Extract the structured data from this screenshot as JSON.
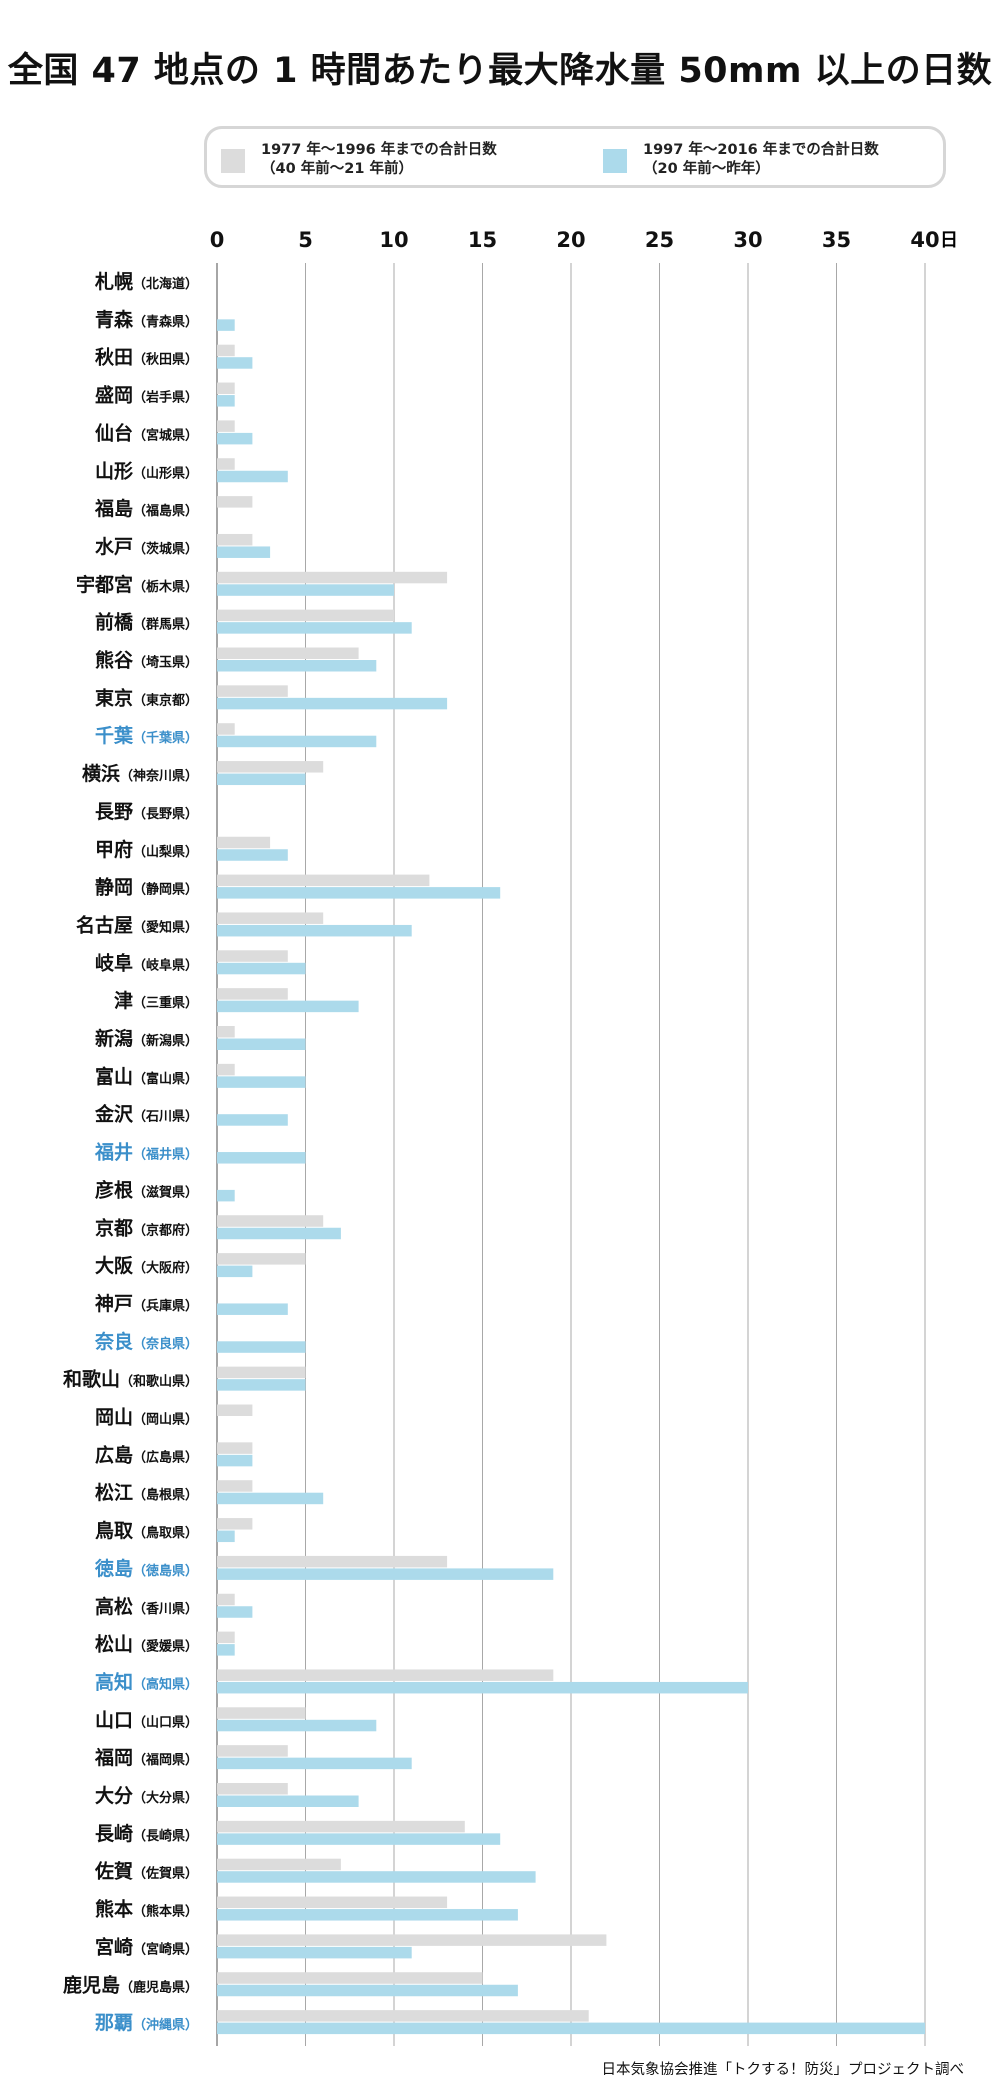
{
  "title": "全国 47 地点の 1 時間あたり最大降水量 50mm 以上の日数",
  "legend": {
    "items": [
      {
        "label_line1": "1977 年〜1996 年までの合計日数",
        "label_line2": "（40 年前〜21 年前）",
        "color": "#dcdcdc"
      },
      {
        "label_line1": "1997 年〜2016 年までの合計日数",
        "label_line2": "（20 年前〜昨年）",
        "color": "#acdaeb"
      }
    ]
  },
  "source": "日本気象協会推進「トクする！防災」プロジェクト調べ",
  "chart_data": {
    "type": "bar",
    "orientation": "horizontal",
    "x_unit": "日",
    "xlim": [
      0,
      40
    ],
    "xticks": [
      0,
      5,
      10,
      15,
      20,
      25,
      30,
      35,
      40
    ],
    "grid": true,
    "legend_position": "top",
    "highlight_color": "#3b8fca",
    "categories": [
      {
        "city": "札幌",
        "pref": "（北海道）",
        "highlight": false
      },
      {
        "city": "青森",
        "pref": "（青森県）",
        "highlight": false
      },
      {
        "city": "秋田",
        "pref": "（秋田県）",
        "highlight": false
      },
      {
        "city": "盛岡",
        "pref": "（岩手県）",
        "highlight": false
      },
      {
        "city": "仙台",
        "pref": "（宮城県）",
        "highlight": false
      },
      {
        "city": "山形",
        "pref": "（山形県）",
        "highlight": false
      },
      {
        "city": "福島",
        "pref": "（福島県）",
        "highlight": false
      },
      {
        "city": "水戸",
        "pref": "（茨城県）",
        "highlight": false
      },
      {
        "city": "宇都宮",
        "pref": "（栃木県）",
        "highlight": false
      },
      {
        "city": "前橋",
        "pref": "（群馬県）",
        "highlight": false
      },
      {
        "city": "熊谷",
        "pref": "（埼玉県）",
        "highlight": false
      },
      {
        "city": "東京",
        "pref": "（東京都）",
        "highlight": false
      },
      {
        "city": "千葉",
        "pref": "（千葉県）",
        "highlight": true
      },
      {
        "city": "横浜",
        "pref": "（神奈川県）",
        "highlight": false
      },
      {
        "city": "長野",
        "pref": "（長野県）",
        "highlight": false
      },
      {
        "city": "甲府",
        "pref": "（山梨県）",
        "highlight": false
      },
      {
        "city": "静岡",
        "pref": "（静岡県）",
        "highlight": false
      },
      {
        "city": "名古屋",
        "pref": "（愛知県）",
        "highlight": false
      },
      {
        "city": "岐阜",
        "pref": "（岐阜県）",
        "highlight": false
      },
      {
        "city": "津",
        "pref": "（三重県）",
        "highlight": false
      },
      {
        "city": "新潟",
        "pref": "（新潟県）",
        "highlight": false
      },
      {
        "city": "富山",
        "pref": "（富山県）",
        "highlight": false
      },
      {
        "city": "金沢",
        "pref": "（石川県）",
        "highlight": false
      },
      {
        "city": "福井",
        "pref": "（福井県）",
        "highlight": true
      },
      {
        "city": "彦根",
        "pref": "（滋賀県）",
        "highlight": false
      },
      {
        "city": "京都",
        "pref": "（京都府）",
        "highlight": false
      },
      {
        "city": "大阪",
        "pref": "（大阪府）",
        "highlight": false
      },
      {
        "city": "神戸",
        "pref": "（兵庫県）",
        "highlight": false
      },
      {
        "city": "奈良",
        "pref": "（奈良県）",
        "highlight": true
      },
      {
        "city": "和歌山",
        "pref": "（和歌山県）",
        "highlight": false
      },
      {
        "city": "岡山",
        "pref": "（岡山県）",
        "highlight": false
      },
      {
        "city": "広島",
        "pref": "（広島県）",
        "highlight": false
      },
      {
        "city": "松江",
        "pref": "（島根県）",
        "highlight": false
      },
      {
        "city": "鳥取",
        "pref": "（鳥取県）",
        "highlight": false
      },
      {
        "city": "徳島",
        "pref": "（徳島県）",
        "highlight": true
      },
      {
        "city": "高松",
        "pref": "（香川県）",
        "highlight": false
      },
      {
        "city": "松山",
        "pref": "（愛媛県）",
        "highlight": false
      },
      {
        "city": "高知",
        "pref": "（高知県）",
        "highlight": true
      },
      {
        "city": "山口",
        "pref": "（山口県）",
        "highlight": false
      },
      {
        "city": "福岡",
        "pref": "（福岡県）",
        "highlight": false
      },
      {
        "city": "大分",
        "pref": "（大分県）",
        "highlight": false
      },
      {
        "city": "長崎",
        "pref": "（長崎県）",
        "highlight": false
      },
      {
        "city": "佐賀",
        "pref": "（佐賀県）",
        "highlight": false
      },
      {
        "city": "熊本",
        "pref": "（熊本県）",
        "highlight": false
      },
      {
        "city": "宮崎",
        "pref": "（宮崎県）",
        "highlight": false
      },
      {
        "city": "鹿児島",
        "pref": "（鹿児島県）",
        "highlight": false
      },
      {
        "city": "那覇",
        "pref": "（沖縄県）",
        "highlight": true
      }
    ],
    "series": [
      {
        "name": "1977 年〜1996 年までの合計日数",
        "color": "#dcdcdc",
        "values": [
          0,
          0,
          1,
          1,
          1,
          1,
          2,
          2,
          13,
          10,
          8,
          4,
          1,
          6,
          0,
          3,
          12,
          6,
          4,
          4,
          1,
          1,
          0,
          0,
          0,
          6,
          5,
          0,
          0,
          5,
          2,
          2,
          2,
          2,
          13,
          1,
          1,
          19,
          5,
          4,
          4,
          14,
          7,
          13,
          22,
          15,
          21
        ]
      },
      {
        "name": "1997 年〜2016 年までの合計日数",
        "color": "#acdaeb",
        "values": [
          0,
          1,
          2,
          1,
          2,
          4,
          0,
          3,
          10,
          11,
          9,
          13,
          9,
          5,
          0,
          4,
          16,
          11,
          5,
          8,
          5,
          5,
          4,
          5,
          1,
          7,
          2,
          4,
          5,
          5,
          0,
          2,
          6,
          1,
          19,
          2,
          1,
          30,
          9,
          11,
          8,
          16,
          18,
          17,
          11,
          17,
          40
        ]
      }
    ]
  }
}
